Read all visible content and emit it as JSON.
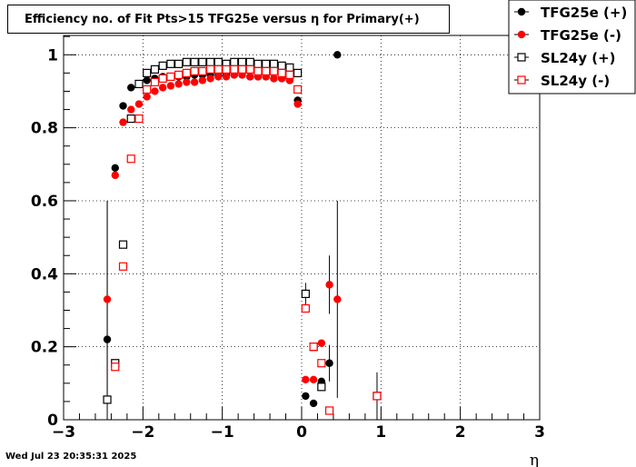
{
  "title": "Efficiency no. of Fit Pts>15 TFG25e versus η for Primary(+)",
  "timestamp": "Wed Jul 23 20:35:31 2025",
  "chart_data": {
    "type": "scatter",
    "title": "Efficiency no. of Fit Pts>15 TFG25e versus η for Primary(+)",
    "xlabel": "η",
    "ylabel": "",
    "xlim": [
      -3,
      3
    ],
    "ylim": [
      0,
      1.0
    ],
    "x_ticks": [
      -3,
      -2,
      -1,
      0,
      1,
      2,
      3
    ],
    "x_tick_labels": [
      "−3",
      "−2",
      "−1",
      "0",
      "1",
      "2",
      "3"
    ],
    "y_ticks": [
      0,
      0.2,
      0.4,
      0.6,
      0.8,
      1
    ],
    "y_tick_labels": [
      "0",
      "0.2",
      "0.4",
      "0.6",
      "0.8",
      "1"
    ],
    "grid": true,
    "legend_position": "top-right",
    "series": [
      {
        "name": "TFG25e (+)",
        "color": "#000000",
        "marker": "filled-circle",
        "points": [
          {
            "x": -2.45,
            "y": 0.22,
            "err": 0.38
          },
          {
            "x": -2.35,
            "y": 0.69
          },
          {
            "x": -2.25,
            "y": 0.86
          },
          {
            "x": -2.15,
            "y": 0.91
          },
          {
            "x": -2.05,
            "y": 0.92
          },
          {
            "x": -1.95,
            "y": 0.93
          },
          {
            "x": -1.85,
            "y": 0.935
          },
          {
            "x": -1.75,
            "y": 0.94
          },
          {
            "x": -1.65,
            "y": 0.94
          },
          {
            "x": -1.55,
            "y": 0.94
          },
          {
            "x": -1.45,
            "y": 0.94
          },
          {
            "x": -1.35,
            "y": 0.945
          },
          {
            "x": -1.25,
            "y": 0.945
          },
          {
            "x": -1.15,
            "y": 0.945
          },
          {
            "x": -1.05,
            "y": 0.945
          },
          {
            "x": -0.95,
            "y": 0.945
          },
          {
            "x": -0.85,
            "y": 0.945
          },
          {
            "x": -0.75,
            "y": 0.945
          },
          {
            "x": -0.65,
            "y": 0.94
          },
          {
            "x": -0.55,
            "y": 0.94
          },
          {
            "x": -0.45,
            "y": 0.94
          },
          {
            "x": -0.35,
            "y": 0.935
          },
          {
            "x": -0.25,
            "y": 0.935
          },
          {
            "x": -0.15,
            "y": 0.93
          },
          {
            "x": -0.05,
            "y": 0.875
          },
          {
            "x": 0.05,
            "y": 0.065
          },
          {
            "x": 0.15,
            "y": 0.045
          },
          {
            "x": 0.25,
            "y": 0.105
          },
          {
            "x": 0.35,
            "y": 0.155,
            "err": 0.05
          },
          {
            "x": 0.45,
            "y": 1.0
          }
        ]
      },
      {
        "name": "TFG25e (-)",
        "color": "#ff0000",
        "marker": "filled-circle",
        "points": [
          {
            "x": -2.45,
            "y": 0.33,
            "err": 0.27
          },
          {
            "x": -2.35,
            "y": 0.67
          },
          {
            "x": -2.25,
            "y": 0.815
          },
          {
            "x": -2.15,
            "y": 0.85
          },
          {
            "x": -2.05,
            "y": 0.865
          },
          {
            "x": -1.95,
            "y": 0.885
          },
          {
            "x": -1.85,
            "y": 0.9
          },
          {
            "x": -1.75,
            "y": 0.91
          },
          {
            "x": -1.65,
            "y": 0.915
          },
          {
            "x": -1.55,
            "y": 0.92
          },
          {
            "x": -1.45,
            "y": 0.925
          },
          {
            "x": -1.35,
            "y": 0.925
          },
          {
            "x": -1.25,
            "y": 0.93
          },
          {
            "x": -1.15,
            "y": 0.935
          },
          {
            "x": -1.05,
            "y": 0.94
          },
          {
            "x": -0.95,
            "y": 0.94
          },
          {
            "x": -0.85,
            "y": 0.945
          },
          {
            "x": -0.75,
            "y": 0.945
          },
          {
            "x": -0.65,
            "y": 0.94
          },
          {
            "x": -0.55,
            "y": 0.94
          },
          {
            "x": -0.45,
            "y": 0.94
          },
          {
            "x": -0.35,
            "y": 0.935
          },
          {
            "x": -0.25,
            "y": 0.935
          },
          {
            "x": -0.15,
            "y": 0.93
          },
          {
            "x": -0.05,
            "y": 0.865
          },
          {
            "x": 0.05,
            "y": 0.11
          },
          {
            "x": 0.15,
            "y": 0.11
          },
          {
            "x": 0.25,
            "y": 0.21
          },
          {
            "x": 0.35,
            "y": 0.37,
            "err": 0.08
          },
          {
            "x": 0.45,
            "y": 0.33,
            "err": 0.27
          }
        ]
      },
      {
        "name": "SL24y (+)",
        "color": "#000000",
        "marker": "open-square",
        "points": [
          {
            "x": -2.45,
            "y": 0.055
          },
          {
            "x": -2.35,
            "y": 0.155
          },
          {
            "x": -2.25,
            "y": 0.48
          },
          {
            "x": -2.15,
            "y": 0.825
          },
          {
            "x": -2.05,
            "y": 0.92
          },
          {
            "x": -1.95,
            "y": 0.95
          },
          {
            "x": -1.85,
            "y": 0.96
          },
          {
            "x": -1.75,
            "y": 0.97
          },
          {
            "x": -1.65,
            "y": 0.975
          },
          {
            "x": -1.55,
            "y": 0.975
          },
          {
            "x": -1.45,
            "y": 0.98
          },
          {
            "x": -1.35,
            "y": 0.98
          },
          {
            "x": -1.25,
            "y": 0.98
          },
          {
            "x": -1.15,
            "y": 0.98
          },
          {
            "x": -1.05,
            "y": 0.98
          },
          {
            "x": -0.95,
            "y": 0.975
          },
          {
            "x": -0.85,
            "y": 0.98
          },
          {
            "x": -0.75,
            "y": 0.98
          },
          {
            "x": -0.65,
            "y": 0.98
          },
          {
            "x": -0.55,
            "y": 0.975
          },
          {
            "x": -0.45,
            "y": 0.975
          },
          {
            "x": -0.35,
            "y": 0.975
          },
          {
            "x": -0.25,
            "y": 0.97
          },
          {
            "x": -0.15,
            "y": 0.965
          },
          {
            "x": -0.05,
            "y": 0.95
          },
          {
            "x": 0.05,
            "y": 0.345,
            "err": 0.03
          },
          {
            "x": 0.15,
            "y": 0.2
          },
          {
            "x": 0.25,
            "y": 0.09
          },
          {
            "x": 0.95,
            "y": 0.065,
            "err": 0.065
          }
        ]
      },
      {
        "name": "SL24y (-)",
        "color": "#ff0000",
        "marker": "open-square",
        "points": [
          {
            "x": -2.35,
            "y": 0.145
          },
          {
            "x": -2.25,
            "y": 0.42
          },
          {
            "x": -2.15,
            "y": 0.715
          },
          {
            "x": -2.05,
            "y": 0.825
          },
          {
            "x": -1.95,
            "y": 0.905
          },
          {
            "x": -1.85,
            "y": 0.925
          },
          {
            "x": -1.75,
            "y": 0.935
          },
          {
            "x": -1.65,
            "y": 0.94
          },
          {
            "x": -1.55,
            "y": 0.945
          },
          {
            "x": -1.45,
            "y": 0.95
          },
          {
            "x": -1.35,
            "y": 0.955
          },
          {
            "x": -1.25,
            "y": 0.955
          },
          {
            "x": -1.15,
            "y": 0.96
          },
          {
            "x": -1.05,
            "y": 0.96
          },
          {
            "x": -0.95,
            "y": 0.96
          },
          {
            "x": -0.85,
            "y": 0.96
          },
          {
            "x": -0.75,
            "y": 0.96
          },
          {
            "x": -0.65,
            "y": 0.96
          },
          {
            "x": -0.55,
            "y": 0.955
          },
          {
            "x": -0.45,
            "y": 0.955
          },
          {
            "x": -0.35,
            "y": 0.955
          },
          {
            "x": -0.25,
            "y": 0.95
          },
          {
            "x": -0.15,
            "y": 0.945
          },
          {
            "x": -0.05,
            "y": 0.905
          },
          {
            "x": 0.05,
            "y": 0.305
          },
          {
            "x": 0.15,
            "y": 0.2
          },
          {
            "x": 0.25,
            "y": 0.155
          },
          {
            "x": 0.35,
            "y": 0.025
          },
          {
            "x": 0.95,
            "y": 0.065
          }
        ]
      }
    ]
  }
}
